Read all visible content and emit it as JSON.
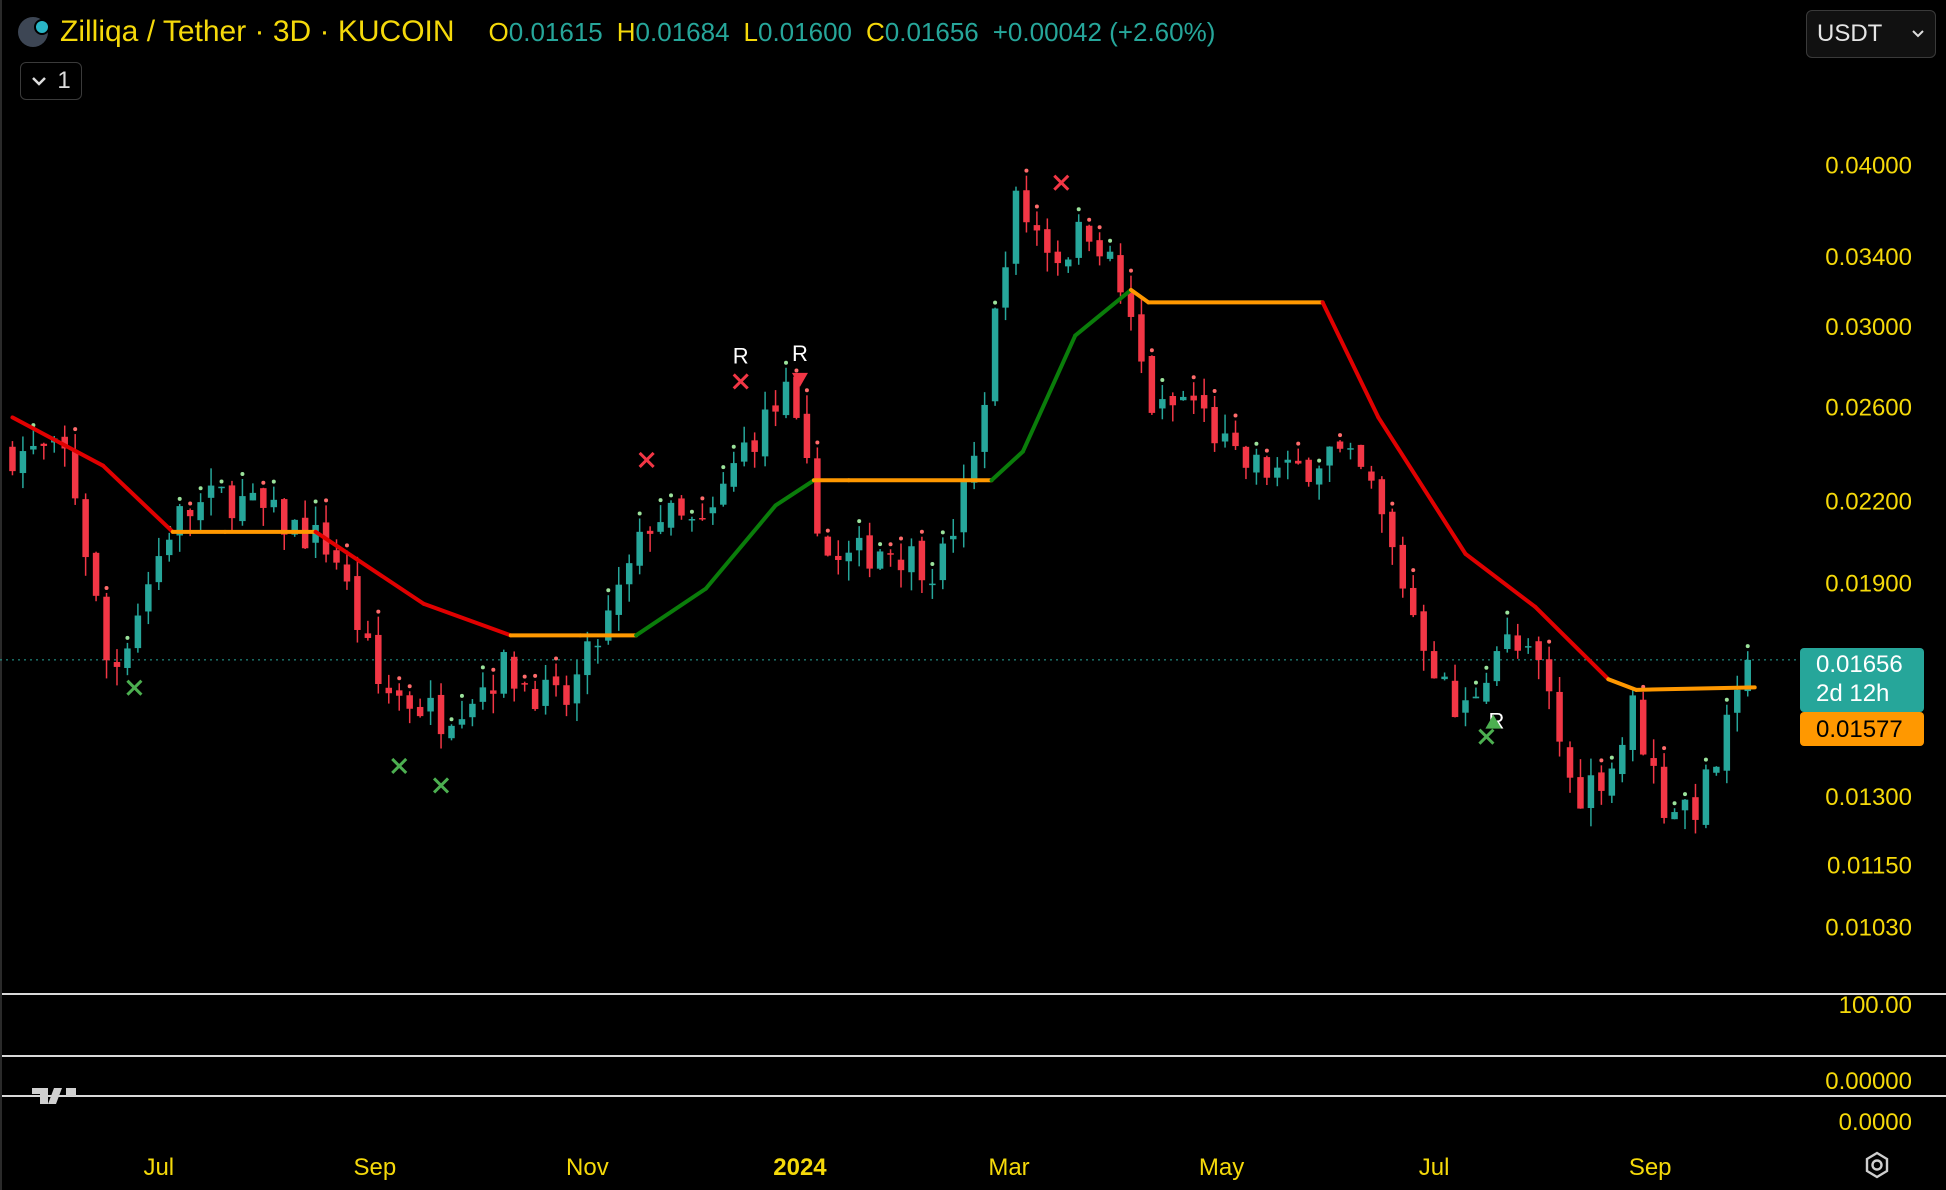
{
  "header": {
    "title": "Zilliqa / Tether · 3D · KUCOIN",
    "ohlc": [
      {
        "key": "O",
        "value": "0.01615"
      },
      {
        "key": "H",
        "value": "0.01684"
      },
      {
        "key": "L",
        "value": "0.01600"
      },
      {
        "key": "C",
        "value": "0.01656"
      }
    ],
    "change": "+0.00042 (+2.60%)",
    "collapse_count": "1"
  },
  "currency_select": {
    "value": "USDT"
  },
  "price_tags": {
    "last_price": "0.01656",
    "countdown": "2d 12h",
    "supertrend": "0.01577"
  },
  "colors": {
    "up": "#26a69a",
    "down": "#f23645",
    "bear_line": "#e00000",
    "bull_line": "#0a7d0a",
    "neutral_line": "#ff9800",
    "axis_text": "#f5d90a"
  },
  "chart_data": {
    "type": "candlestick",
    "y_scale": "log",
    "ylim": [
      0.0092,
      0.0465
    ],
    "y_ticks": [
      "0.04000",
      "0.03400",
      "0.03000",
      "0.02600",
      "0.02200",
      "0.01900",
      "0.01300",
      "0.01150",
      "0.01030"
    ],
    "x_ticks": [
      "Jul",
      "Sep",
      "Nov",
      "2024",
      "Mar",
      "May",
      "Jul",
      "Sep"
    ],
    "sub_pane_labels": [
      "100.00",
      "0.00000",
      "0.0000"
    ],
    "last_close": 0.01656,
    "close_path": [
      [
        "2023-05-20",
        0.024
      ],
      [
        "2023-06-05",
        0.0238
      ],
      [
        "2023-06-17",
        0.016
      ],
      [
        "2023-07-05",
        0.0212
      ],
      [
        "2023-07-20",
        0.0222
      ],
      [
        "2023-08-08",
        0.021
      ],
      [
        "2023-08-20",
        0.0202
      ],
      [
        "2023-09-02",
        0.0158
      ],
      [
        "2023-09-20",
        0.015
      ],
      [
        "2023-10-08",
        0.0163
      ],
      [
        "2023-10-25",
        0.0152
      ],
      [
        "2023-11-08",
        0.018
      ],
      [
        "2023-11-20",
        0.0215
      ],
      [
        "2023-12-05",
        0.0208
      ],
      [
        "2023-12-15",
        0.024
      ],
      [
        "2023-12-28",
        0.0265
      ],
      [
        "2024-01-10",
        0.0195
      ],
      [
        "2024-01-25",
        0.0203
      ],
      [
        "2024-02-10",
        0.0195
      ],
      [
        "2024-02-20",
        0.0235
      ],
      [
        "2024-03-02",
        0.0375
      ],
      [
        "2024-03-15",
        0.034
      ],
      [
        "2024-03-25",
        0.036
      ],
      [
        "2024-04-02",
        0.032
      ],
      [
        "2024-04-12",
        0.0255
      ],
      [
        "2024-04-22",
        0.0265
      ],
      [
        "2024-05-05",
        0.0235
      ],
      [
        "2024-05-20",
        0.023
      ],
      [
        "2024-06-01",
        0.024
      ],
      [
        "2024-06-12",
        0.0228
      ],
      [
        "2024-06-25",
        0.018
      ],
      [
        "2024-07-08",
        0.0148
      ],
      [
        "2024-07-20",
        0.0172
      ],
      [
        "2024-08-01",
        0.0162
      ],
      [
        "2024-08-10",
        0.013
      ],
      [
        "2024-08-22",
        0.0138
      ],
      [
        "2024-08-27",
        0.0152
      ],
      [
        "2024-09-05",
        0.0128
      ],
      [
        "2024-09-15",
        0.0128
      ],
      [
        "2024-09-25",
        0.015
      ],
      [
        "2024-10-01",
        0.01656
      ]
    ],
    "supertrend": [
      [
        "2023-05-20",
        0.0255,
        "bear"
      ],
      [
        "2023-06-15",
        0.0234,
        "bear"
      ],
      [
        "2023-07-05",
        0.0208,
        "bear"
      ],
      [
        "2023-07-20",
        0.0208,
        "neutral"
      ],
      [
        "2023-08-15",
        0.0208,
        "neutral"
      ],
      [
        "2023-09-15",
        0.0183,
        "bear"
      ],
      [
        "2023-10-10",
        0.0173,
        "bear"
      ],
      [
        "2023-10-30",
        0.0173,
        "neutral"
      ],
      [
        "2023-11-15",
        0.0173,
        "neutral"
      ],
      [
        "2023-12-05",
        0.0188,
        "bull"
      ],
      [
        "2023-12-25",
        0.0218,
        "bull"
      ],
      [
        "2024-01-05",
        0.0228,
        "bull"
      ],
      [
        "2024-01-15",
        0.0228,
        "neutral"
      ],
      [
        "2024-02-25",
        0.0228,
        "neutral"
      ],
      [
        "2024-03-05",
        0.024,
        "bull"
      ],
      [
        "2024-03-20",
        0.0295,
        "bull"
      ],
      [
        "2024-04-05",
        0.032,
        "bull"
      ],
      [
        "2024-04-10",
        0.0313,
        "neutral"
      ],
      [
        "2024-05-30",
        0.0313,
        "neutral"
      ],
      [
        "2024-06-15",
        0.0255,
        "bear"
      ],
      [
        "2024-07-10",
        0.02,
        "bear"
      ],
      [
        "2024-07-30",
        0.0182,
        "bear"
      ],
      [
        "2024-08-20",
        0.016,
        "bear"
      ],
      [
        "2024-08-28",
        0.0157,
        "neutral"
      ],
      [
        "2024-10-01",
        0.01577,
        "neutral"
      ]
    ],
    "markers": [
      {
        "date": "2023-06-24",
        "kind": "x",
        "color": "green"
      },
      {
        "date": "2023-09-08",
        "kind": "x",
        "color": "green"
      },
      {
        "date": "2023-09-20",
        "kind": "x",
        "color": "green"
      },
      {
        "date": "2023-11-18",
        "kind": "x",
        "color": "red"
      },
      {
        "date": "2023-12-15",
        "kind": "x",
        "color": "red",
        "label": "R"
      },
      {
        "date": "2024-01-01",
        "kind": "triangle-down",
        "color": "red",
        "label": "R"
      },
      {
        "date": "2024-03-16",
        "kind": "x",
        "color": "red"
      },
      {
        "date": "2024-07-16",
        "kind": "x",
        "color": "green",
        "label": "R"
      },
      {
        "date": "2024-07-18",
        "kind": "triangle-up",
        "color": "green"
      }
    ]
  }
}
